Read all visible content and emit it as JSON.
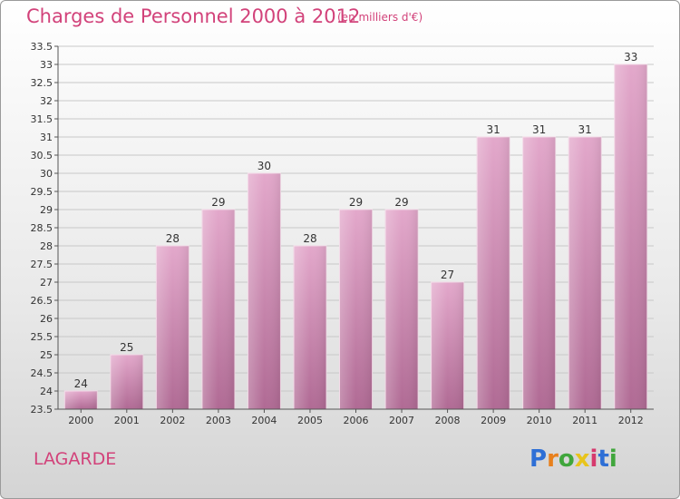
{
  "header": {
    "title": "Charges de Personnel 2000 à 2012",
    "subtitle": "(en milliers d'€)"
  },
  "footer": {
    "town": "LAGARDE",
    "logo_text": "Proxiti"
  },
  "colors": {
    "accent": "#d2427a",
    "bar_top": "#e3a8cb",
    "bar_bottom": "#b06a94",
    "logo": [
      "#2e6fd6",
      "#e8801c",
      "#40a63c",
      "#e8c41c",
      "#d63a6e",
      "#2e6fd6",
      "#40a63c"
    ]
  },
  "chart_data": {
    "type": "bar",
    "title": "Charges de Personnel 2000 à 2012",
    "subtitle": "(en milliers d'€)",
    "xlabel": "",
    "ylabel": "",
    "categories": [
      "2000",
      "2001",
      "2002",
      "2003",
      "2004",
      "2005",
      "2006",
      "2007",
      "2008",
      "2009",
      "2010",
      "2011",
      "2012"
    ],
    "values": [
      24,
      25,
      28,
      29,
      30,
      28,
      29,
      29,
      27,
      31,
      31,
      31,
      33
    ],
    "data_labels": [
      "24",
      "25",
      "28",
      "29",
      "30",
      "28",
      "29",
      "29",
      "27",
      "31",
      "31",
      "31",
      "33"
    ],
    "ylim": [
      23.5,
      33.5
    ],
    "yticks": [
      "23.5",
      "24",
      "24.5",
      "25",
      "25.5",
      "26",
      "26.5",
      "27",
      "27.5",
      "28",
      "28.5",
      "29",
      "29.5",
      "30",
      "30.5",
      "31",
      "31.5",
      "32",
      "32.5",
      "33",
      "33.5"
    ],
    "grid": true,
    "legend": "none"
  }
}
